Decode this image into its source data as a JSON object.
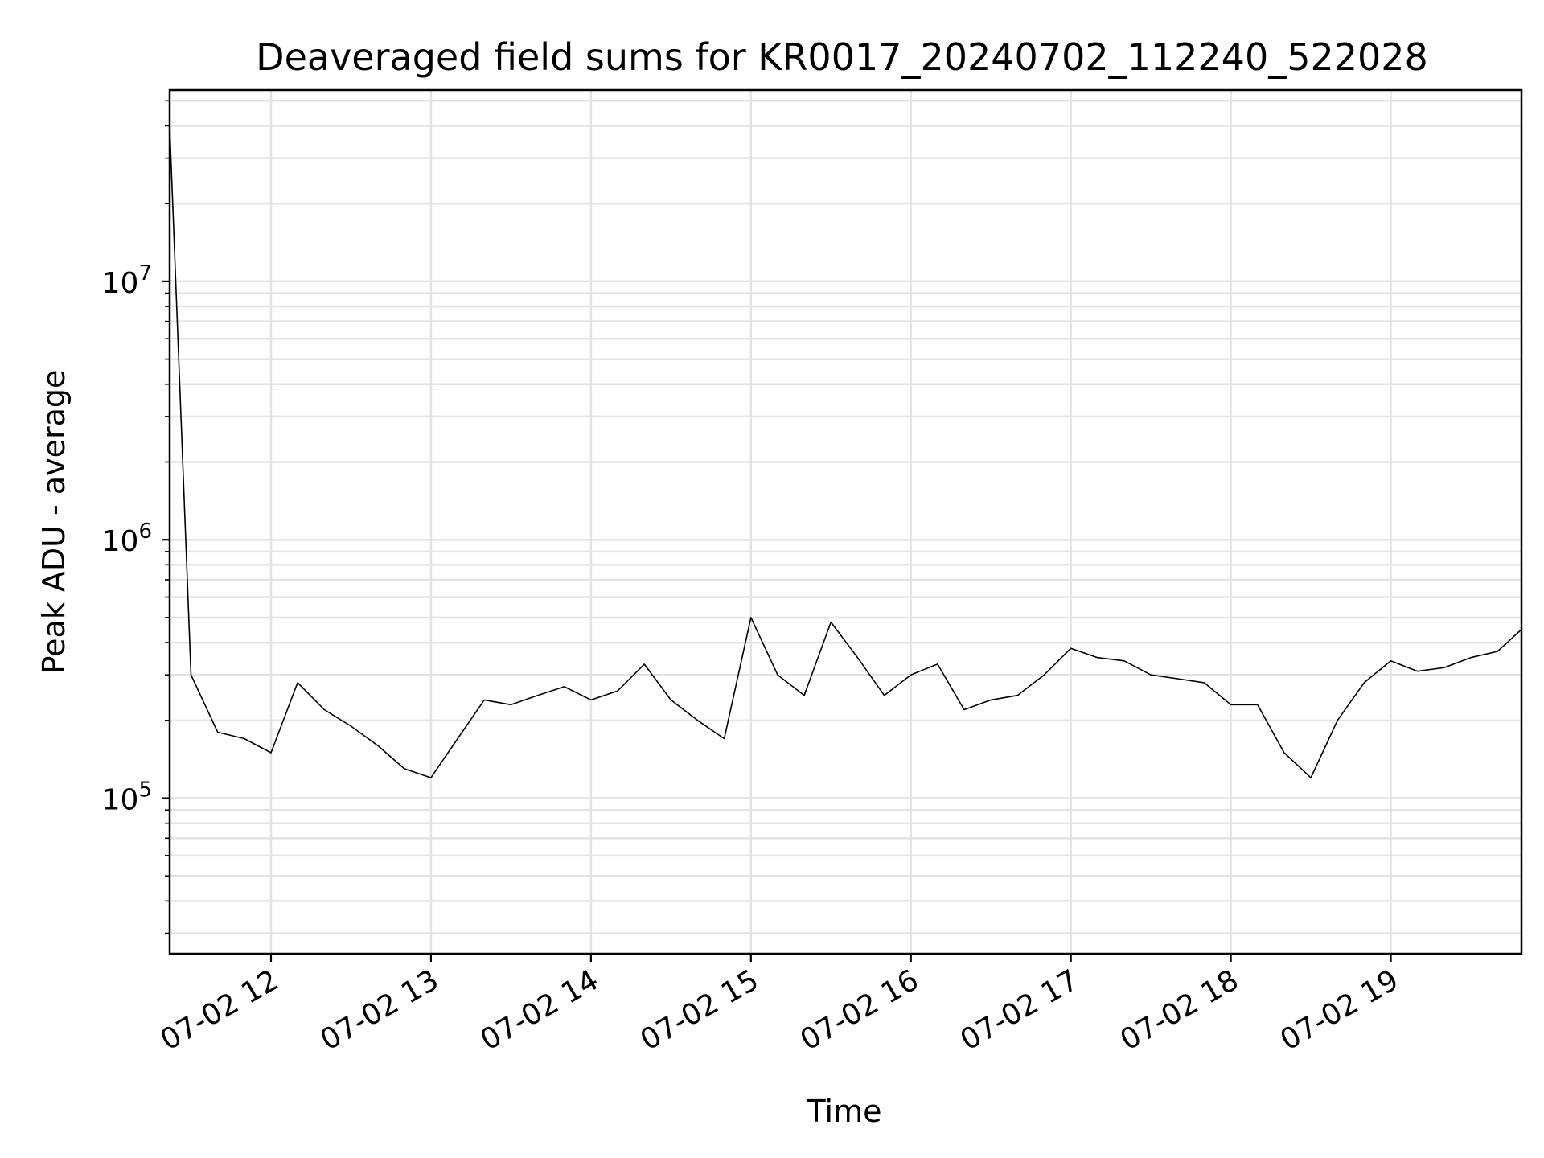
{
  "chart_data": {
    "type": "line",
    "title": "Deaveraged field sums for KR0017_20240702_112240_522028",
    "xlabel": "Time",
    "ylabel": "Peak ADU - average",
    "yscale": "log",
    "ylim": [
      25000,
      55000000
    ],
    "xlim": [
      "2024-07-02 11:22",
      "2024-07-02 19:49"
    ],
    "x_ticks": [
      {
        "t": "2024-07-02 12:00",
        "label": "07-02 12"
      },
      {
        "t": "2024-07-02 13:00",
        "label": "07-02 13"
      },
      {
        "t": "2024-07-02 14:00",
        "label": "07-02 14"
      },
      {
        "t": "2024-07-02 15:00",
        "label": "07-02 15"
      },
      {
        "t": "2024-07-02 16:00",
        "label": "07-02 16"
      },
      {
        "t": "2024-07-02 17:00",
        "label": "07-02 17"
      },
      {
        "t": "2024-07-02 18:00",
        "label": "07-02 18"
      },
      {
        "t": "2024-07-02 19:00",
        "label": "07-02 19"
      }
    ],
    "y_ticks": [
      {
        "value": 100000,
        "base": "10",
        "exp": "5"
      },
      {
        "value": 1000000,
        "base": "10",
        "exp": "6"
      },
      {
        "value": 10000000,
        "base": "10",
        "exp": "7"
      }
    ],
    "grid": true,
    "line_color": "#000000",
    "series": [
      {
        "x": [
          "2024-07-02 11:22",
          "2024-07-02 11:30",
          "2024-07-02 11:40",
          "2024-07-02 11:50",
          "2024-07-02 12:00",
          "2024-07-02 12:10",
          "2024-07-02 12:20",
          "2024-07-02 12:30",
          "2024-07-02 12:40",
          "2024-07-02 12:50",
          "2024-07-02 13:00",
          "2024-07-02 13:10",
          "2024-07-02 13:20",
          "2024-07-02 13:30",
          "2024-07-02 13:40",
          "2024-07-02 13:50",
          "2024-07-02 14:00",
          "2024-07-02 14:10",
          "2024-07-02 14:20",
          "2024-07-02 14:30",
          "2024-07-02 14:40",
          "2024-07-02 14:50",
          "2024-07-02 15:00",
          "2024-07-02 15:10",
          "2024-07-02 15:20",
          "2024-07-02 15:30",
          "2024-07-02 15:40",
          "2024-07-02 15:50",
          "2024-07-02 16:00",
          "2024-07-02 16:10",
          "2024-07-02 16:20",
          "2024-07-02 16:30",
          "2024-07-02 16:40",
          "2024-07-02 16:50",
          "2024-07-02 17:00",
          "2024-07-02 17:10",
          "2024-07-02 17:20",
          "2024-07-02 17:30",
          "2024-07-02 17:40",
          "2024-07-02 17:50",
          "2024-07-02 18:00",
          "2024-07-02 18:10",
          "2024-07-02 18:20",
          "2024-07-02 18:30",
          "2024-07-02 18:40",
          "2024-07-02 18:50",
          "2024-07-02 19:00",
          "2024-07-02 19:10",
          "2024-07-02 19:20",
          "2024-07-02 19:30",
          "2024-07-02 19:40",
          "2024-07-02 19:49"
        ],
        "y": [
          40000000,
          300000,
          180000,
          170000,
          150000,
          280000,
          220000,
          190000,
          160000,
          130000,
          120000,
          170000,
          240000,
          230000,
          250000,
          270000,
          240000,
          260000,
          330000,
          240000,
          200000,
          170000,
          500000,
          300000,
          250000,
          480000,
          350000,
          250000,
          300000,
          330000,
          220000,
          240000,
          250000,
          300000,
          380000,
          350000,
          340000,
          300000,
          290000,
          280000,
          230000,
          230000,
          150000,
          120000,
          200000,
          280000,
          340000,
          310000,
          320000,
          350000,
          370000,
          450000
        ]
      }
    ]
  }
}
